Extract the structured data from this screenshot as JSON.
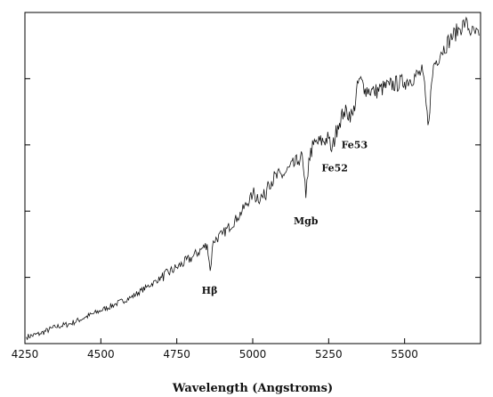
{
  "chart_data": {
    "type": "line",
    "title": "",
    "xlabel": "Wavelength (Angstroms)",
    "ylabel": "",
    "xlim": [
      4250,
      5750
    ],
    "ylim": [
      0,
      100
    ],
    "grid": false,
    "x_ticks": [
      4250,
      4500,
      4750,
      5000,
      5250,
      5500
    ],
    "x_tick_labels": [
      "4250",
      "4500",
      "4750",
      "5000",
      "5250",
      "5500"
    ],
    "y_ticks": [
      20,
      40,
      60,
      80
    ],
    "y_tick_labels": [
      "",
      "",
      "",
      ""
    ],
    "series": [
      {
        "x": [
          4255,
          4300,
          4350,
          4400,
          4450,
          4500,
          4550,
          4600,
          4650,
          4700,
          4750,
          4800,
          4850,
          4860,
          4870,
          4900,
          4950,
          5000,
          5040,
          5050,
          5100,
          5150,
          5160,
          5175,
          5185,
          5200,
          5250,
          5260,
          5280,
          5300,
          5330,
          5350,
          5370,
          5400,
          5450,
          5500,
          5560,
          5577,
          5595,
          5620,
          5650,
          5680,
          5700,
          5720,
          5745
        ],
        "y": [
          2,
          3,
          5,
          6,
          8,
          10,
          12,
          14,
          17,
          20,
          23,
          26,
          30,
          22,
          31,
          33,
          38,
          45,
          44,
          49,
          51,
          55,
          58,
          44,
          56,
          60,
          62,
          58,
          66,
          70,
          69,
          80,
          77,
          76,
          78,
          79,
          82,
          66,
          84,
          88,
          92,
          95,
          97,
          94,
          93
        ]
      }
    ],
    "annotations": [
      {
        "text": "Hβ",
        "x": 4858,
        "y": 15
      },
      {
        "text": "Mgb",
        "x": 5175,
        "y": 36
      },
      {
        "text": "Fe52",
        "x": 5270,
        "y": 52
      },
      {
        "text": "Fe53",
        "x": 5335,
        "y": 59
      }
    ]
  }
}
